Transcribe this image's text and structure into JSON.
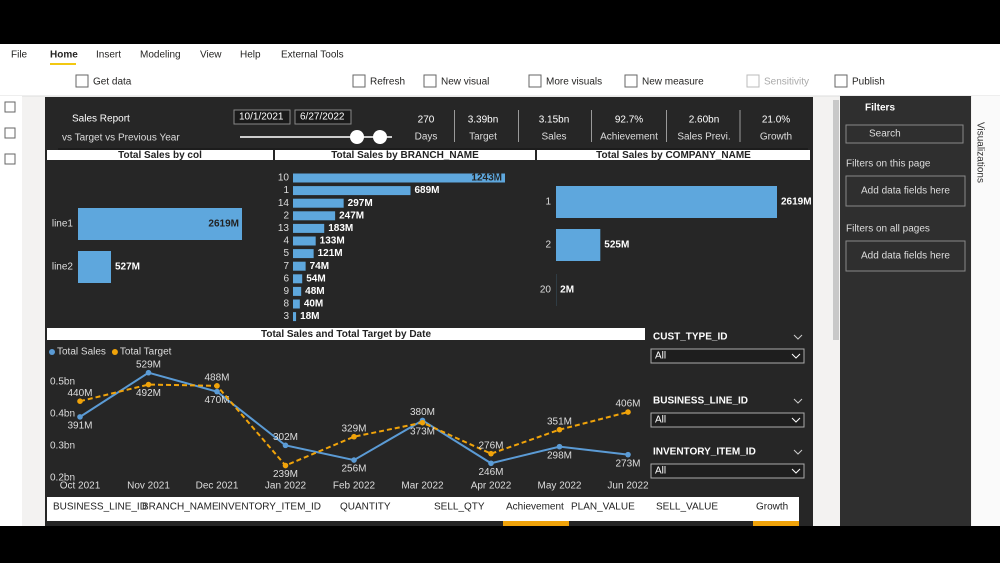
{
  "menu": [
    "File",
    "Home",
    "Insert",
    "Modeling",
    "View",
    "Help",
    "External Tools"
  ],
  "ribbon": [
    "Get data",
    "Refresh",
    "New visual",
    "More visuals",
    "New measure",
    "Sensitivity",
    "Publish"
  ],
  "report": {
    "title": "Sales Report",
    "subtitle": "vs Target vs Previous Year",
    "start_date": "10/1/2021",
    "end_date": "6/27/2022",
    "kpis": [
      {
        "value": "270",
        "label": "Days"
      },
      {
        "value": "3.39bn",
        "label": "Target"
      },
      {
        "value": "3.15bn",
        "label": "Sales"
      },
      {
        "value": "92.7%",
        "label": "Achievement"
      },
      {
        "value": "2.60bn",
        "label": "Sales Previ."
      },
      {
        "value": "21.0%",
        "label": "Growth"
      }
    ]
  },
  "charts": [
    {
      "type": "bar",
      "title": "Total Sales by col",
      "color": "#5ea7dd",
      "categories": [
        "line1",
        "line2"
      ],
      "values": [
        2619,
        527
      ],
      "value_labels": [
        "2619M",
        "527M"
      ]
    },
    {
      "type": "bar",
      "title": "Total Sales by BRANCH_NAME",
      "color": "#5ea7dd",
      "categories": [
        "10",
        "1",
        "14",
        "2",
        "13",
        "4",
        "5",
        "7",
        "6",
        "9",
        "8",
        "3"
      ],
      "values": [
        1243,
        689,
        297,
        247,
        183,
        133,
        121,
        74,
        54,
        48,
        40,
        18
      ],
      "value_labels": [
        "1243M",
        "689M",
        "297M",
        "247M",
        "183M",
        "133M",
        "121M",
        "74M",
        "54M",
        "48M",
        "40M",
        "18M"
      ]
    },
    {
      "type": "bar",
      "title": "Total Sales by COMPANY_NAME",
      "color": "#5ea7dd",
      "categories": [
        "1",
        "2",
        "20"
      ],
      "values": [
        2619,
        525,
        2
      ],
      "value_labels": [
        "2619M",
        "525M",
        "2M"
      ]
    },
    {
      "type": "line",
      "title": "Total Sales and Total Target by Date",
      "categories": [
        "Oct 2021",
        "Nov 2021",
        "Dec 2021",
        "Jan 2022",
        "Feb 2022",
        "Mar 2022",
        "Apr 2022",
        "May 2022",
        "Jun 2022"
      ],
      "series": [
        {
          "name": "Total Sales",
          "color": "#5b9bd5",
          "values": [
            0.391,
            0.529,
            0.47,
            0.302,
            0.256,
            0.38,
            0.246,
            0.298,
            0.273
          ],
          "value_labels": [
            "391M",
            "529M",
            "470M",
            "302M",
            "256M",
            "380M",
            "246M",
            "298M",
            "273M"
          ]
        },
        {
          "name": "Total Target",
          "color": "#f0a30a",
          "values": [
            0.44,
            0.492,
            0.488,
            0.239,
            0.329,
            0.373,
            0.276,
            0.351,
            0.406
          ],
          "value_labels": [
            "440M",
            "492M",
            "488M",
            "239M",
            "329M",
            "373M",
            "276M",
            "351M",
            "406M"
          ]
        }
      ],
      "ylim": [
        0.2,
        0.55
      ],
      "yticks": [
        {
          "value": 0.2,
          "label": "0.2bn"
        },
        {
          "value": 0.3,
          "label": "0.3bn"
        },
        {
          "value": 0.4,
          "label": "0.4bn"
        },
        {
          "value": 0.5,
          "label": "0.5bn"
        }
      ]
    }
  ],
  "slicers": [
    {
      "label": "CUST_TYPE_ID",
      "value": "All"
    },
    {
      "label": "BUSINESS_LINE_ID",
      "value": "All"
    },
    {
      "label": "INVENTORY_ITEM_ID",
      "value": "All"
    }
  ],
  "table": {
    "columns": [
      "BUSINESS_LINE_ID",
      "BRANCH_NAME",
      "INVENTORY_ITEM_ID",
      "QUANTITY",
      "SELL_QTY",
      "Achievement",
      "PLAN_VALUE",
      "SELL_VALUE",
      "Growth"
    ]
  },
  "filters": {
    "title": "Filters",
    "search": "Search",
    "sections": [
      {
        "label": "Filters on this page",
        "placeholder": "Add data fields here"
      },
      {
        "label": "Filters on all pages",
        "placeholder": "Add data fields here"
      }
    ]
  },
  "side_tab": "Visualizations"
}
